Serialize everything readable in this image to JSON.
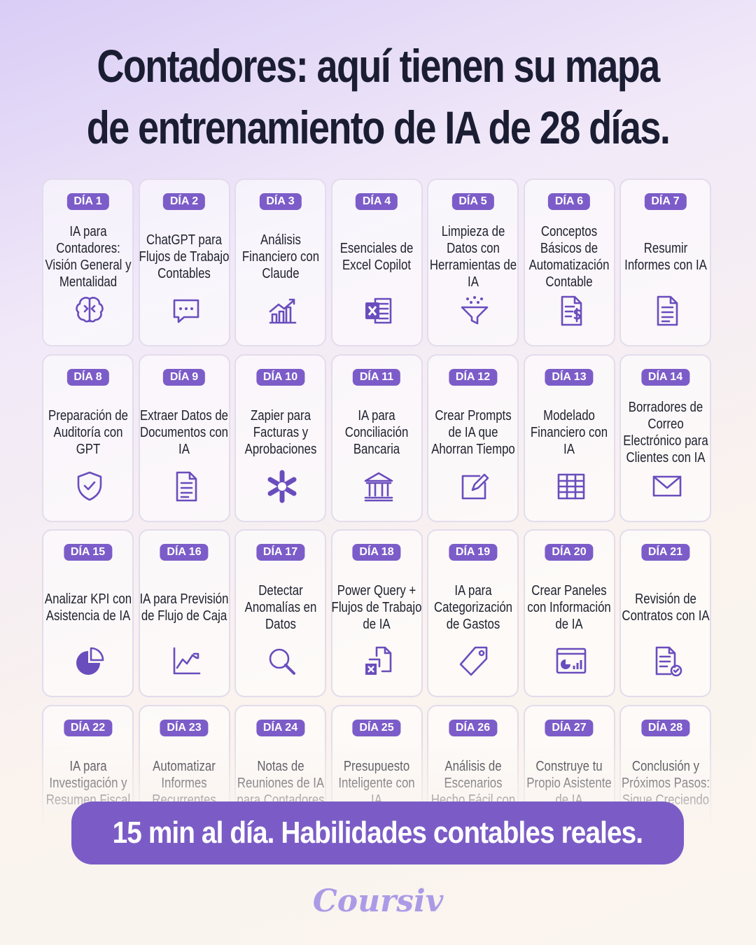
{
  "title_lines": [
    "Contadores: aquí tienen su mapa",
    "de entrenamiento de IA de 28 días."
  ],
  "days": [
    {
      "label": "DÍA 1",
      "text": "IA para Contadores: Visión General y Mentalidad"
    },
    {
      "label": "DÍA 2",
      "text": "ChatGPT para Flujos de Trabajo Contables"
    },
    {
      "label": "DÍA 3",
      "text": "Análisis Financiero con Claude"
    },
    {
      "label": "DÍA 4",
      "text": "Esenciales de Excel Copilot"
    },
    {
      "label": "DÍA 5",
      "text": "Limpieza de Datos con Herramientas de IA"
    },
    {
      "label": "DÍA 6",
      "text": "Conceptos Básicos de Automatización Contable"
    },
    {
      "label": "DÍA 7",
      "text": "Resumir Informes con IA"
    },
    {
      "label": "DÍA 8",
      "text": "Preparación de Auditoría con GPT"
    },
    {
      "label": "DÍA 9",
      "text": "Extraer Datos de Documentos con IA"
    },
    {
      "label": "DÍA 10",
      "text": "Zapier para Facturas y Aprobaciones"
    },
    {
      "label": "DÍA 11",
      "text": "IA para Conciliación Bancaria"
    },
    {
      "label": "DÍA 12",
      "text": "Crear Prompts de IA que Ahorran Tiempo"
    },
    {
      "label": "DÍA 13",
      "text": "Modelado Financiero con IA"
    },
    {
      "label": "DÍA 14",
      "text": "Borradores de Correo Electrónico para Clientes con IA"
    },
    {
      "label": "DÍA 15",
      "text": "Analizar KPI con Asistencia de IA"
    },
    {
      "label": "DÍA 16",
      "text": "IA para Previsión de Flujo de Caja"
    },
    {
      "label": "DÍA 17",
      "text": "Detectar Anomalías en Datos"
    },
    {
      "label": "DÍA 18",
      "text": "Power Query + Flujos de Trabajo de IA"
    },
    {
      "label": "DÍA 19",
      "text": "IA para Categorización de Gastos"
    },
    {
      "label": "DÍA 20",
      "text": "Crear Paneles con Información de IA"
    },
    {
      "label": "DÍA 21",
      "text": "Revisión de Contratos con IA"
    },
    {
      "label": "DÍA 22",
      "text": "IA para Investigación y Resumen Fiscal"
    },
    {
      "label": "DÍA 23",
      "text": "Automatizar Informes Recurrentes"
    },
    {
      "label": "DÍA 24",
      "text": "Notas de Reuniones de IA para Contadores"
    },
    {
      "label": "DÍA 25",
      "text": "Presupuesto Inteligente con IA"
    },
    {
      "label": "DÍA 26",
      "text": "Análisis de Escenarios Hecho Fácil con"
    },
    {
      "label": "DÍA 27",
      "text": "Construye tu Propio Asistente de IA"
    },
    {
      "label": "DÍA 28",
      "text": "Conclusión y Próximos Pasos: Sigue Creciendo"
    }
  ],
  "banner": "15 min al día. Habilidades contables reales.",
  "brand": "Coursiv"
}
